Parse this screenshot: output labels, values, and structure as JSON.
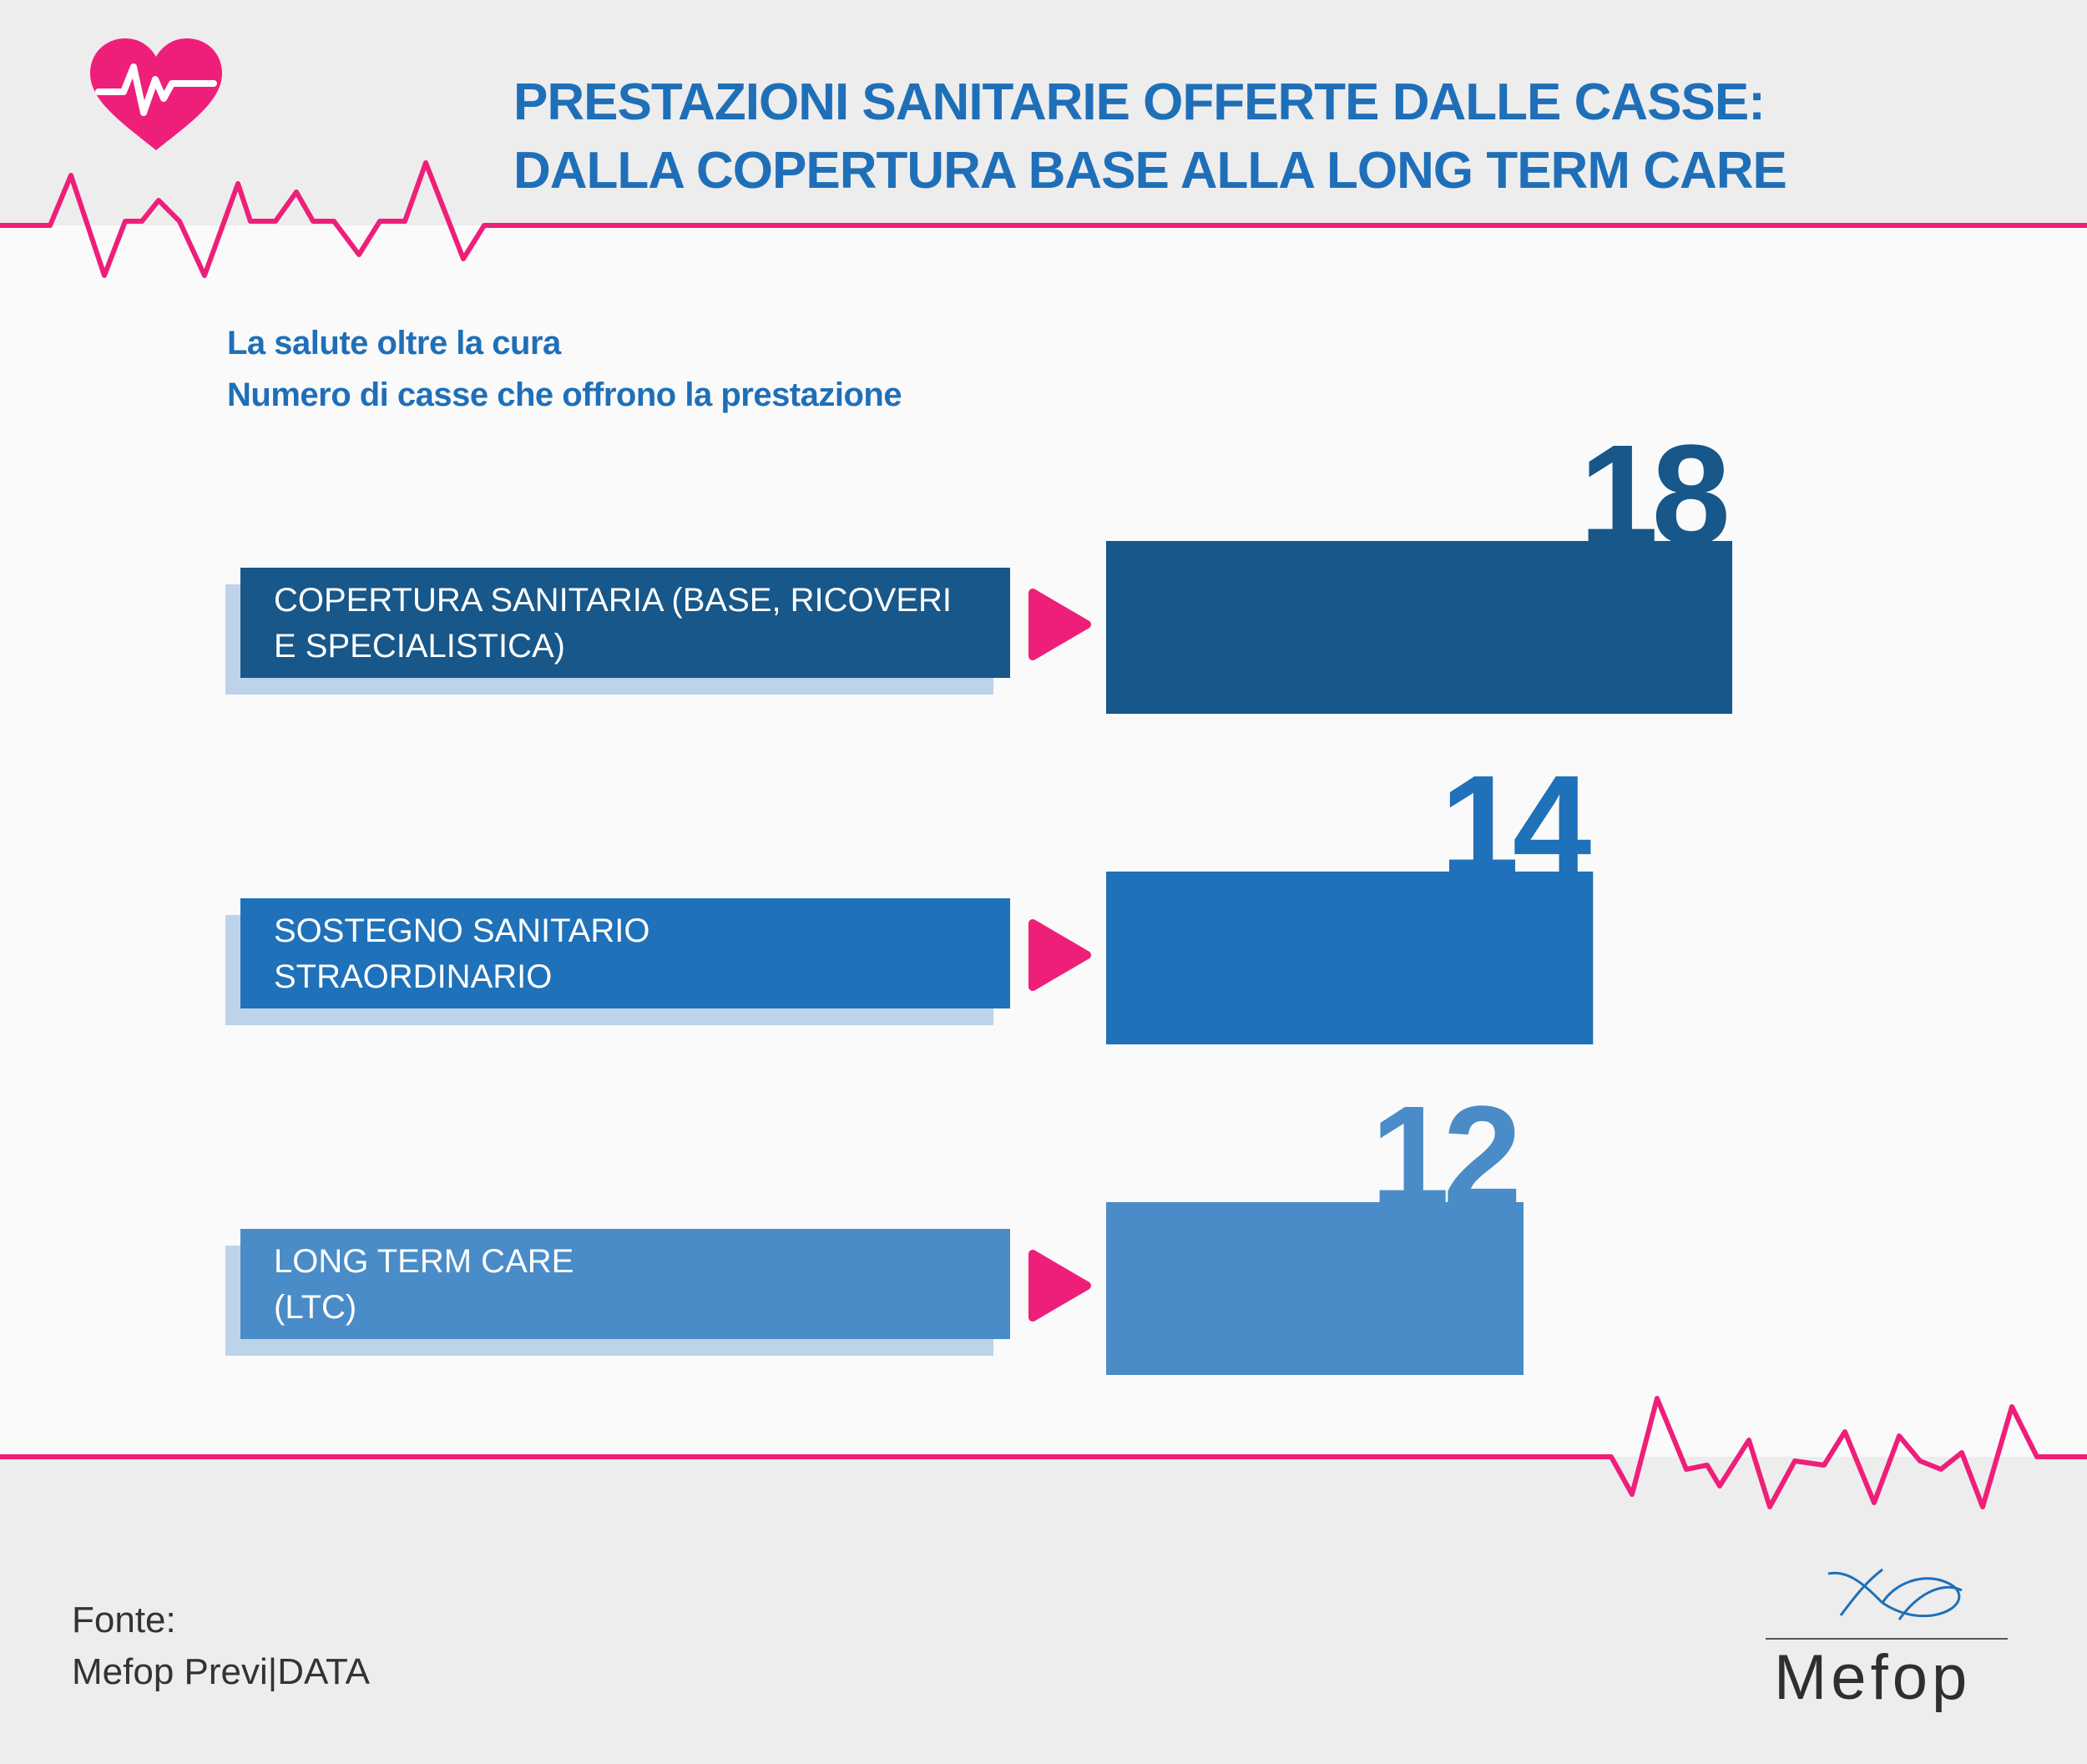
{
  "header": {
    "title_lines": [
      "PRESTAZIONI SANITARIE OFFERTE DALLE CASSE:",
      "DALLA COPERTURA BASE ALLA LONG TERM CARE"
    ],
    "icon": "heart-pulse-icon"
  },
  "chart_data": {
    "type": "bar",
    "orientation": "horizontal",
    "title": "La salute oltre la cura",
    "subtitle": "Numero di casse che offrono la prestazione",
    "categories": [
      [
        "COPERTURA SANITARIA (BASE, RICOVERI",
        "E SPECIALISTICA)"
      ],
      [
        "SOSTEGNO SANITARIO",
        "STRAORDINARIO"
      ],
      [
        "LONG TERM CARE",
        "(LTC)"
      ]
    ],
    "values": [
      18,
      14,
      12
    ],
    "bar_colors": [
      "#17578a",
      "#1f71b9",
      "#4a8cc7"
    ],
    "label_shadow_color": "#bcd3ea",
    "arrow_color": "#ee1f79",
    "value_labels": true,
    "grid": false,
    "legend": "none"
  },
  "decor": {
    "ecg_color": "#ee1f79",
    "ecg_icon": "ecg-line-icon",
    "heart_color": "#ee1f79"
  },
  "footer": {
    "source_lines": [
      "Fonte:",
      "Mefop Previ|DATA"
    ],
    "logo_text": "Mefop",
    "logo_icon": "mefop-logo-icon"
  }
}
